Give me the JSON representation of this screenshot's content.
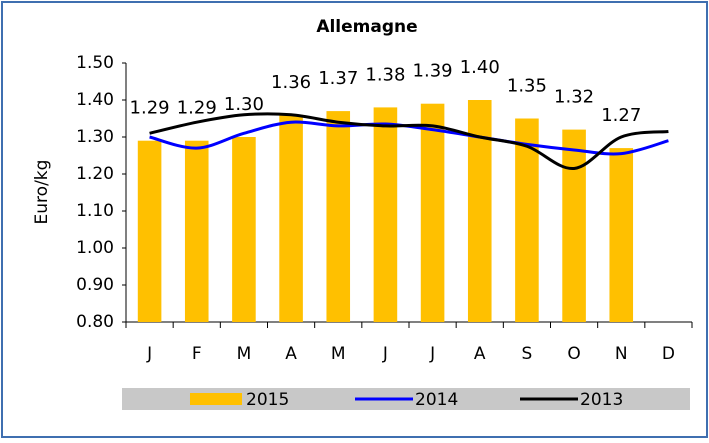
{
  "chart_data": {
    "type": "bar_line",
    "title": "Allemagne",
    "y_label": "Euro/kg",
    "categories": [
      "J",
      "F",
      "M",
      "A",
      "M",
      "J",
      "J",
      "A",
      "S",
      "O",
      "N",
      "D"
    ],
    "ylim": [
      0.8,
      1.5
    ],
    "yticks": [
      {
        "value": 0.8,
        "label": "0.80"
      },
      {
        "value": 0.9,
        "label": "0.90"
      },
      {
        "value": 1.0,
        "label": "1.00"
      },
      {
        "value": 1.1,
        "label": "1.10"
      },
      {
        "value": 1.2,
        "label": "1.20"
      },
      {
        "value": 1.3,
        "label": "1.30"
      },
      {
        "value": 1.4,
        "label": "1.40"
      },
      {
        "value": 1.5,
        "label": "1.50"
      }
    ],
    "series": [
      {
        "name": "2015",
        "kind": "bar",
        "color": "#ffc000",
        "values": [
          1.29,
          1.29,
          1.3,
          1.36,
          1.37,
          1.38,
          1.39,
          1.4,
          1.35,
          1.32,
          1.27,
          null
        ],
        "value_labels": [
          "1.29",
          "1.29",
          "1.30",
          "1.36",
          "1.37",
          "1.38",
          "1.39",
          "1.40",
          "1.35",
          "1.32",
          "1.27",
          null
        ]
      },
      {
        "name": "2014",
        "kind": "line",
        "color": "#0000ff",
        "values": [
          1.3,
          1.27,
          1.31,
          1.34,
          1.33,
          1.335,
          1.32,
          1.3,
          1.28,
          1.265,
          1.255,
          1.29
        ]
      },
      {
        "name": "2013",
        "kind": "line",
        "color": "#000000",
        "values": [
          1.31,
          1.34,
          1.36,
          1.36,
          1.34,
          1.33,
          1.33,
          1.3,
          1.275,
          1.215,
          1.3,
          1.315
        ]
      }
    ]
  }
}
